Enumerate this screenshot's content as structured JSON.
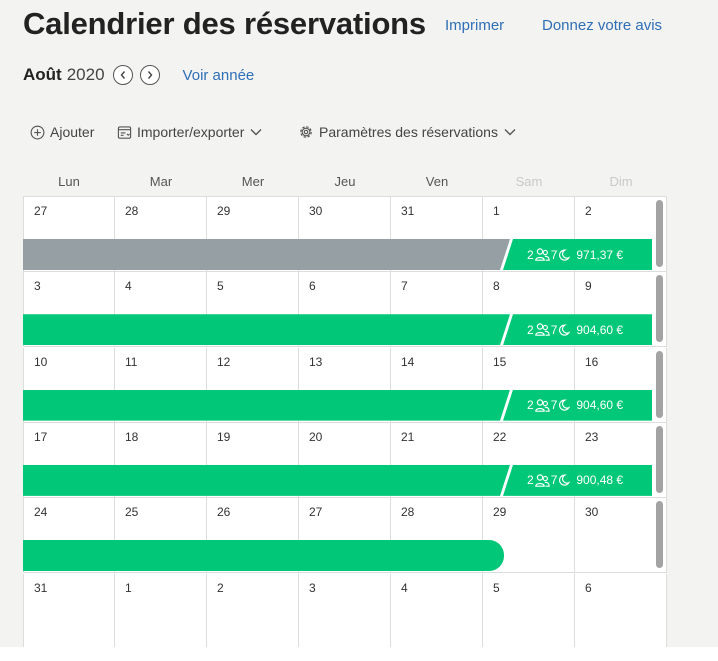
{
  "header": {
    "title": "Calendrier des réservations",
    "print_label": "Imprimer",
    "feedback_label": "Donnez votre avis"
  },
  "month_nav": {
    "month": "Août",
    "year": "2020",
    "view_year_label": "Voir année"
  },
  "toolbar": {
    "add_label": "Ajouter",
    "import_export_label": "Importer/exporter",
    "settings_label": "Paramètres des réservations"
  },
  "weekdays": [
    "Lun",
    "Mar",
    "Mer",
    "Jeu",
    "Ven",
    "Sam",
    "Dim"
  ],
  "weeks": [
    [
      "27",
      "28",
      "29",
      "30",
      "31",
      "1",
      "2"
    ],
    [
      "3",
      "4",
      "5",
      "6",
      "7",
      "8",
      "9"
    ],
    [
      "10",
      "11",
      "12",
      "13",
      "14",
      "15",
      "16"
    ],
    [
      "17",
      "18",
      "19",
      "20",
      "21",
      "22",
      "23"
    ],
    [
      "24",
      "25",
      "26",
      "27",
      "28",
      "29",
      "30"
    ],
    [
      "31",
      "1",
      "2",
      "3",
      "4",
      "5",
      "6"
    ]
  ],
  "bookings": [
    {
      "guests": "2",
      "nights": "7",
      "price": "971,37 €",
      "status": "past"
    },
    {
      "guests": "2",
      "nights": "7",
      "price": "904,60 €",
      "status": "confirmed"
    },
    {
      "guests": "2",
      "nights": "7",
      "price": "904,60 €",
      "status": "confirmed"
    },
    {
      "guests": "2",
      "nights": "7",
      "price": "900,48 €",
      "status": "confirmed"
    }
  ],
  "colors": {
    "accent_link": "#2f6fb6",
    "booking_green": "#00c878",
    "booking_past_gray": "#959fa4"
  },
  "icons": {
    "prev": "chevron-left-icon",
    "next": "chevron-right-icon",
    "add": "plus-circle-icon",
    "import_export": "import-export-icon",
    "settings": "gear-icon",
    "guests": "people-icon",
    "nights": "moon-icon"
  }
}
